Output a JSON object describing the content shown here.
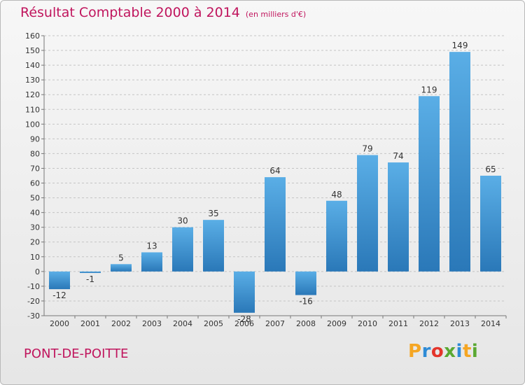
{
  "page": {
    "title": "Résultat Comptable 2000 à 2014",
    "subtitle": "(en milliers d'€)",
    "commune": "PONT-DE-POITTE"
  },
  "logo": {
    "letters": [
      "P",
      "r",
      "o",
      "x",
      "i",
      "t",
      "i"
    ],
    "colors": [
      "#f5a623",
      "#2e8bd6",
      "#e4352b",
      "#5aa832",
      "#2e8bd6",
      "#f5a623",
      "#5aa832"
    ]
  },
  "colors": {
    "accent": "#c0155d",
    "bar_top": "#5aaee6",
    "bar_bottom": "#2a78b8"
  },
  "chart_data": {
    "type": "bar",
    "title": "Résultat Comptable 2000 à 2014",
    "units": "(en milliers d'€)",
    "categories": [
      "2000",
      "2001",
      "2002",
      "2003",
      "2004",
      "2005",
      "2006",
      "2007",
      "2008",
      "2009",
      "2010",
      "2011",
      "2012",
      "2013",
      "2014"
    ],
    "values": [
      -12,
      -1,
      5,
      13,
      30,
      35,
      -28,
      64,
      -16,
      48,
      79,
      74,
      119,
      149,
      65
    ],
    "labels": [
      "-12",
      "-1",
      "5",
      "13",
      "30",
      "35",
      "-28",
      "64",
      "-16",
      "48",
      "79",
      "74",
      "119",
      "149",
      "65"
    ],
    "ylim": [
      -30,
      160
    ],
    "yticks": [
      -30,
      -20,
      -10,
      0,
      10,
      20,
      30,
      40,
      50,
      60,
      70,
      80,
      90,
      100,
      110,
      120,
      130,
      140,
      150,
      160
    ],
    "grid": "horizontal dashed",
    "xlabel": "",
    "ylabel": ""
  }
}
